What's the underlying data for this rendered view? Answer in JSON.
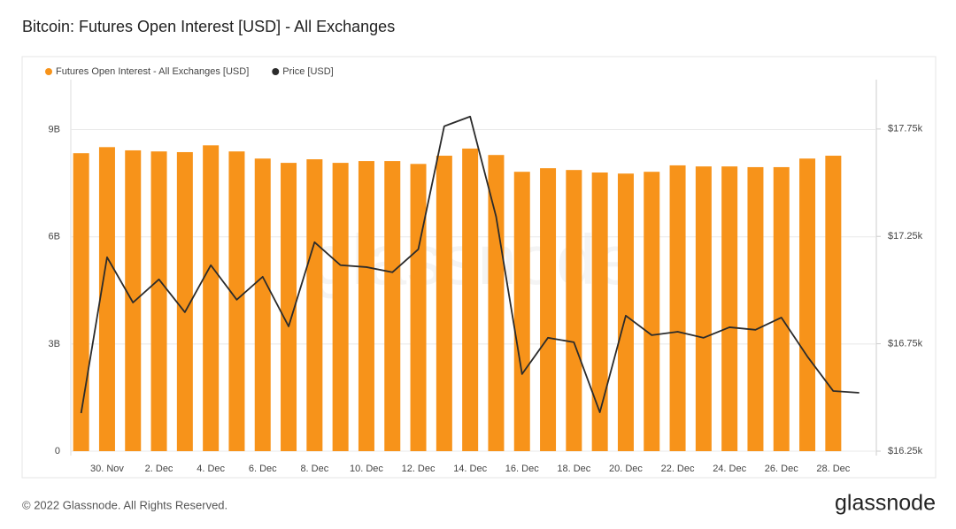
{
  "chart_data": {
    "type": "bar",
    "title": "Bitcoin: Futures Open Interest [USD] - All Exchanges",
    "watermark": "glassnode",
    "categories": [
      null,
      "30. Nov",
      null,
      "2. Dec",
      null,
      "4. Dec",
      null,
      "6. Dec",
      null,
      "8. Dec",
      null,
      "10. Dec",
      null,
      "12. Dec",
      null,
      "14. Dec",
      null,
      "16. Dec",
      null,
      "18. Dec",
      null,
      "20. Dec",
      null,
      "22. Dec",
      null,
      "24. Dec",
      null,
      "26. Dec",
      null,
      "28. Dec",
      null
    ],
    "series": [
      {
        "name": "Futures Open Interest - All Exchanges [USD]",
        "type": "bar",
        "color": "#f7931a",
        "values": [
          8340000000,
          8510000000,
          8420000000,
          8390000000,
          8370000000,
          8560000000,
          8390000000,
          8190000000,
          8070000000,
          8170000000,
          8070000000,
          8120000000,
          8120000000,
          8040000000,
          8270000000,
          8470000000,
          8290000000,
          7820000000,
          7920000000,
          7870000000,
          7800000000,
          7770000000,
          7820000000,
          8000000000,
          7970000000,
          7970000000,
          7950000000,
          7950000000,
          8190000000,
          8270000000,
          null
        ]
      },
      {
        "name": "Price [USD]",
        "type": "line",
        "color": "#2b2b2b",
        "axis": "y2",
        "values": [
          16427,
          17153,
          16942,
          17050,
          16897,
          17116,
          16955,
          17062,
          16831,
          17223,
          17116,
          17107,
          17083,
          17190,
          17763,
          17808,
          17342,
          16609,
          16778,
          16757,
          16431,
          16881,
          16790,
          16806,
          16778,
          16827,
          16815,
          16872,
          16691,
          16530,
          16522
        ]
      }
    ],
    "ylim": [
      0,
      10400000000
    ],
    "yticks": [
      0,
      {
        "value": 3000000000,
        "label": "3B"
      },
      {
        "value": 6000000000,
        "label": "6B"
      },
      {
        "value": 9000000000,
        "label": "9B"
      }
    ],
    "y2lim": [
      16250,
      17980
    ],
    "y2ticks": [
      {
        "value": 16250,
        "label": "$16.25k"
      },
      {
        "value": 16750,
        "label": "$16.75k"
      },
      {
        "value": 17250,
        "label": "$17.25k"
      },
      {
        "value": 17750,
        "label": "$17.75k"
      }
    ],
    "grid": true,
    "legend": "top-left"
  },
  "footer": {
    "copyright": "© 2022 Glassnode. All Rights Reserved.",
    "logo": "glassnode"
  }
}
